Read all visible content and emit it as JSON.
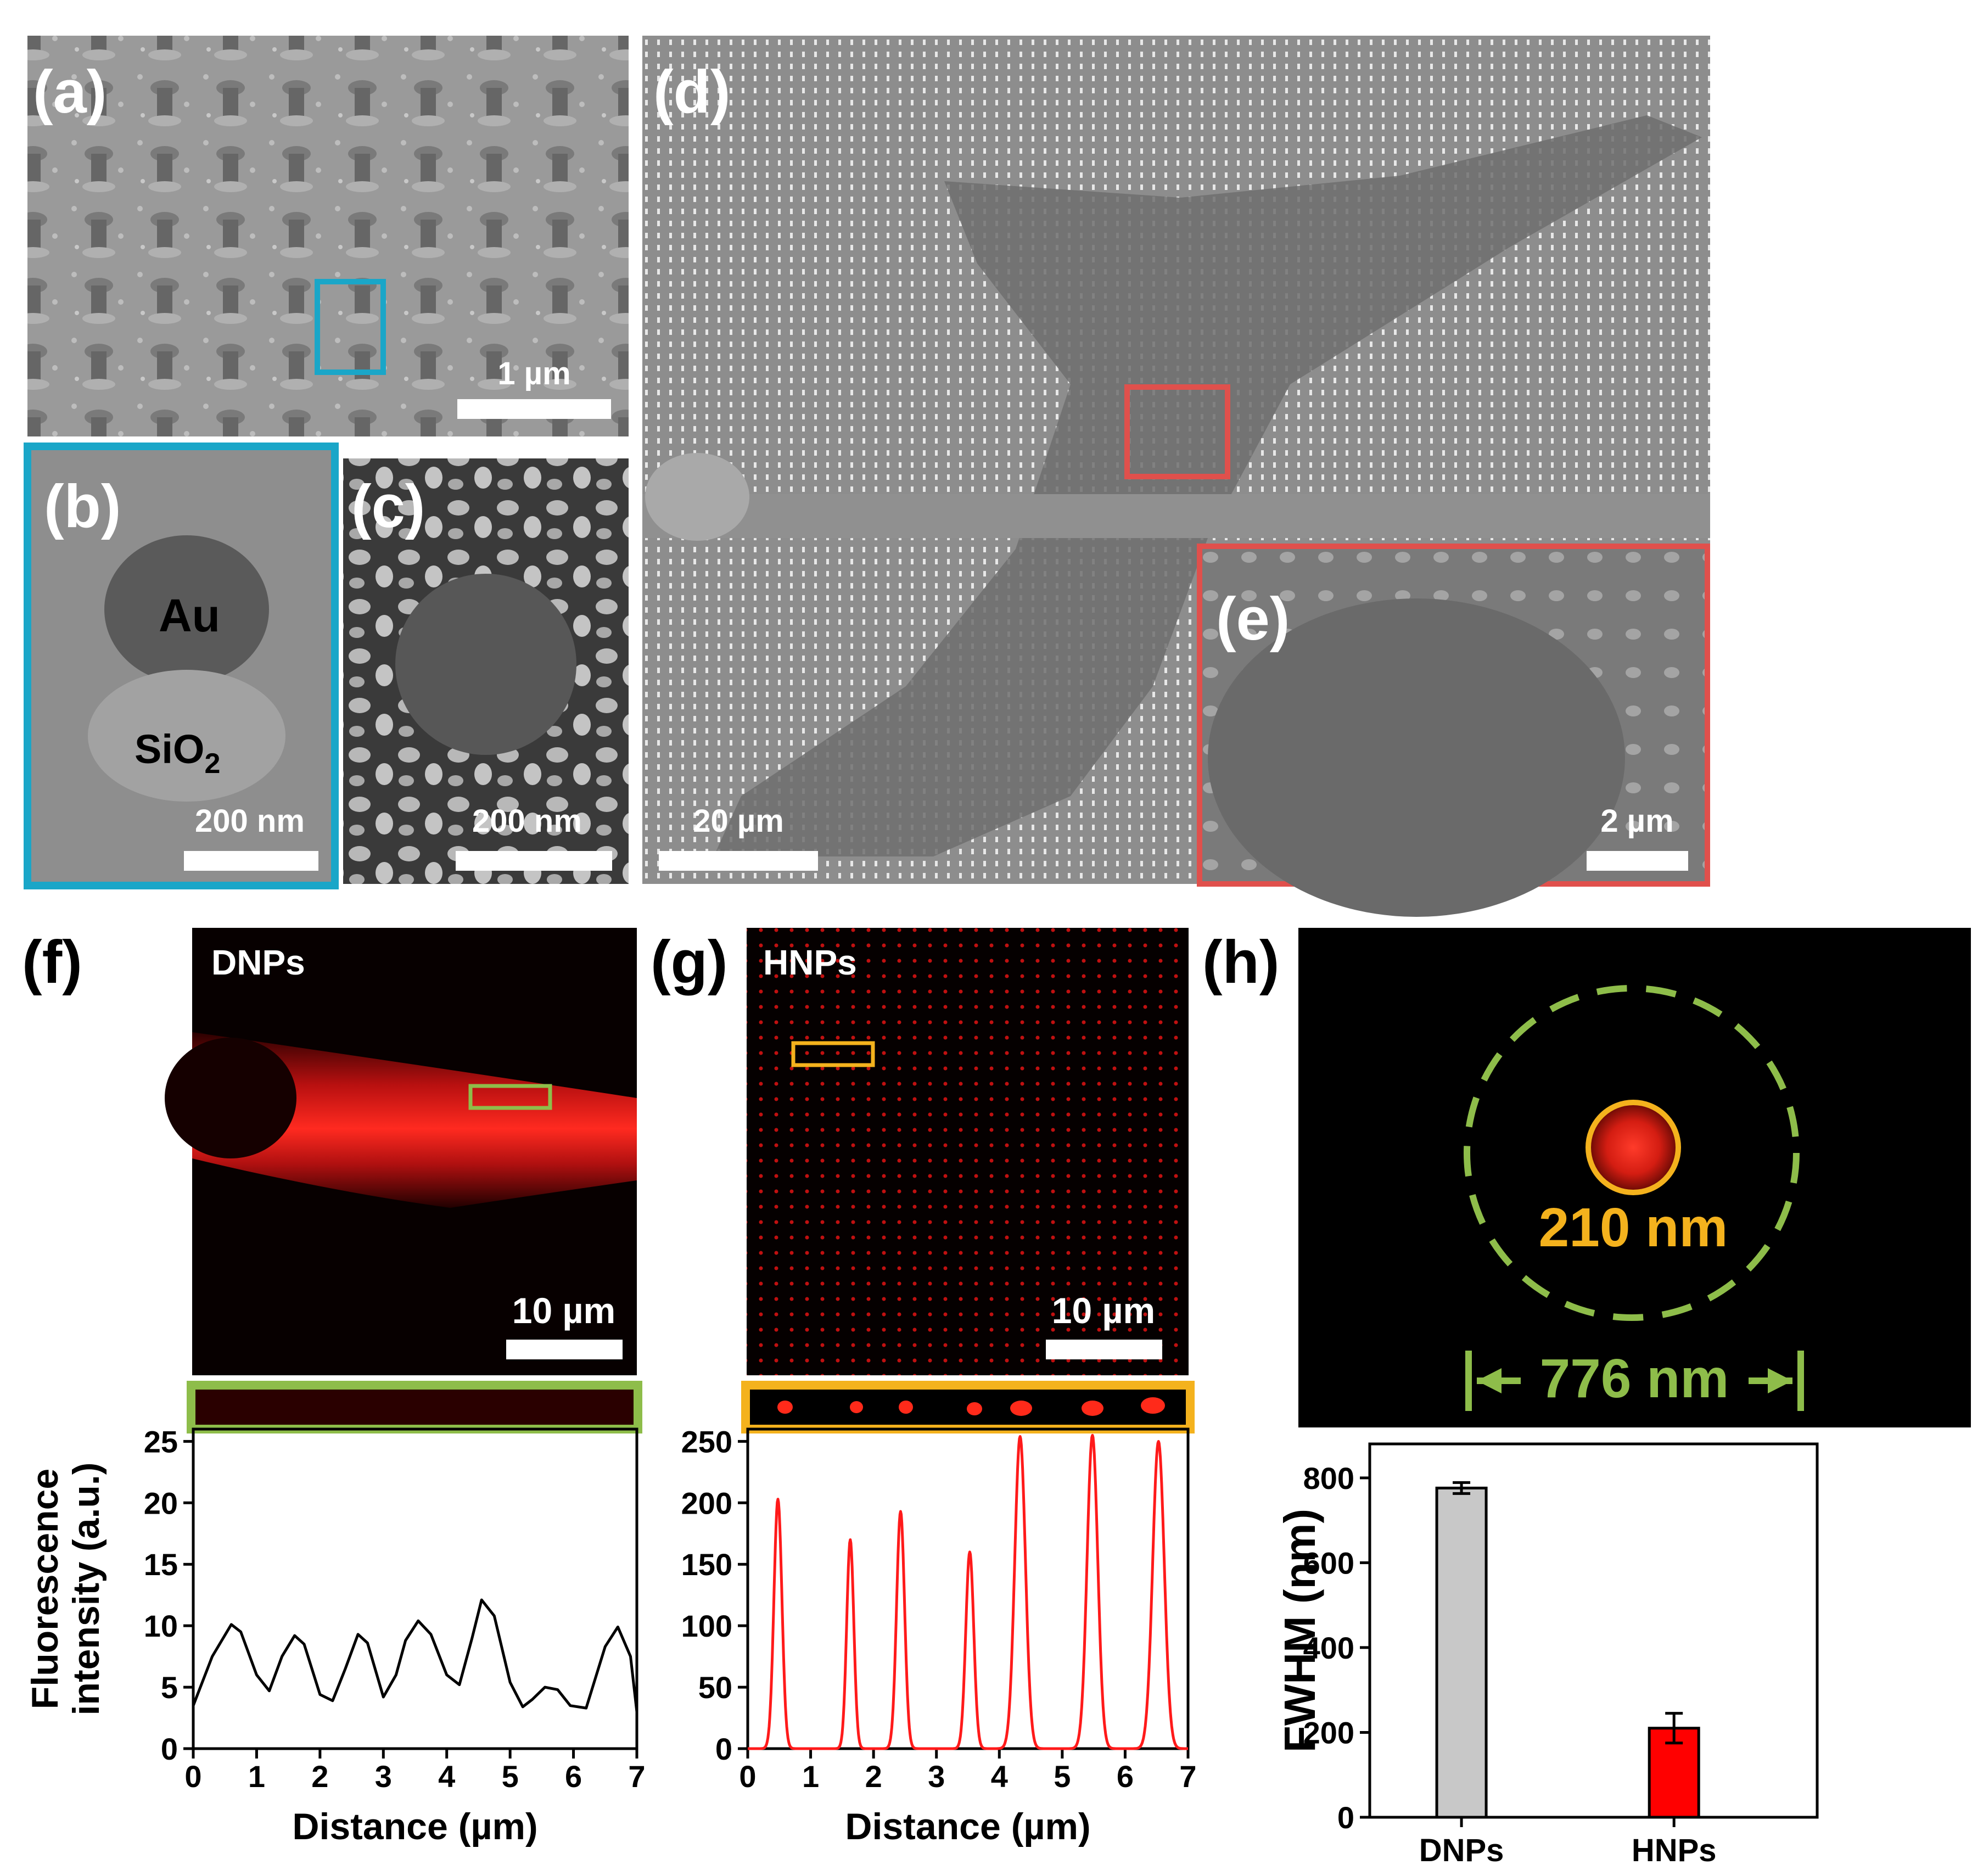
{
  "figure": {
    "panel_labels": {
      "a": "(a)",
      "b": "(b)",
      "c": "(c)",
      "d": "(d)",
      "e": "(e)",
      "f": "(f)",
      "g": "(g)",
      "h": "(h)"
    },
    "sem": {
      "a_scalebar": "1 µm",
      "b_au_label": "Au",
      "b_sio2_label": "SiO",
      "b_sio2_sub": "2",
      "b_scalebar": "200 nm",
      "c_scalebar": "200 nm",
      "d_scalebar": "20 µm",
      "e_scalebar": "2 µm"
    },
    "fluor": {
      "f_title": "DNPs",
      "f_scalebar": "10 µm",
      "g_title": "HNPs",
      "g_scalebar": "10 µm",
      "h_small_diameter": "210 nm",
      "h_large_diameter": "776 nm"
    },
    "colors": {
      "cyan": "#1aa6c8",
      "red_box": "#e0504c",
      "green": "#8ebd4a",
      "orange": "#f4b21d",
      "red_signal": "#ff1a1a"
    }
  },
  "chart_data": [
    {
      "id": "f",
      "type": "line",
      "title": "",
      "xlabel": "Distance (µm)",
      "ylabel": "Fluorescence intensity (a.u.)",
      "ylabel_line1": "Fluorescence",
      "ylabel_line2": "intensity (a.u.)",
      "xlim": [
        0,
        7
      ],
      "ylim": [
        0,
        26
      ],
      "xticks": [
        0,
        1,
        2,
        3,
        4,
        5,
        6,
        7
      ],
      "yticks": [
        0,
        5,
        10,
        15,
        20,
        25
      ],
      "color": "#000000",
      "series": [
        {
          "name": "DNPs profile",
          "x": [
            0,
            0.3,
            0.6,
            0.75,
            1.0,
            1.2,
            1.4,
            1.6,
            1.75,
            2.0,
            2.2,
            2.4,
            2.6,
            2.75,
            3.0,
            3.2,
            3.35,
            3.55,
            3.75,
            4.0,
            4.2,
            4.4,
            4.55,
            4.75,
            5.0,
            5.2,
            5.35,
            5.55,
            5.75,
            5.95,
            6.2,
            6.5,
            6.7,
            6.9,
            7.0
          ],
          "y": [
            3.5,
            7.5,
            10.1,
            9.5,
            6.0,
            4.7,
            7.5,
            9.2,
            8.5,
            4.4,
            3.9,
            6.5,
            9.3,
            8.6,
            4.2,
            6.0,
            8.8,
            10.4,
            9.3,
            6.0,
            5.2,
            9.0,
            12.1,
            10.8,
            5.4,
            3.4,
            4.0,
            5.0,
            4.8,
            3.5,
            3.3,
            8.3,
            9.9,
            7.5,
            3.0
          ]
        }
      ]
    },
    {
      "id": "g",
      "type": "line",
      "title": "",
      "xlabel": "Distance (µm)",
      "ylabel": "",
      "xlim": [
        0,
        7
      ],
      "ylim": [
        0,
        260
      ],
      "xticks": [
        0,
        1,
        2,
        3,
        4,
        5,
        6,
        7
      ],
      "yticks": [
        0,
        50,
        100,
        150,
        200,
        250
      ],
      "color": "#ff1a1a",
      "peaks": [
        {
          "x": 0.48,
          "y": 203,
          "width": 0.09
        },
        {
          "x": 1.63,
          "y": 170,
          "width": 0.08
        },
        {
          "x": 2.43,
          "y": 193,
          "width": 0.09
        },
        {
          "x": 3.53,
          "y": 160,
          "width": 0.09
        },
        {
          "x": 4.33,
          "y": 254,
          "width": 0.12
        },
        {
          "x": 5.48,
          "y": 255,
          "width": 0.12
        },
        {
          "x": 6.53,
          "y": 250,
          "width": 0.13
        }
      ],
      "baseline": 0
    },
    {
      "id": "h",
      "type": "bar",
      "title": "",
      "xlabel": "",
      "ylabel": "FWHM (nm)",
      "categories": [
        "DNPs",
        "HNPs"
      ],
      "values": [
        776,
        210
      ],
      "errors": [
        13,
        35
      ],
      "colors": [
        "#c8c8c8",
        "#ff0000"
      ],
      "ylim": [
        0,
        880
      ],
      "yticks": [
        0,
        200,
        400,
        600,
        800
      ]
    }
  ]
}
